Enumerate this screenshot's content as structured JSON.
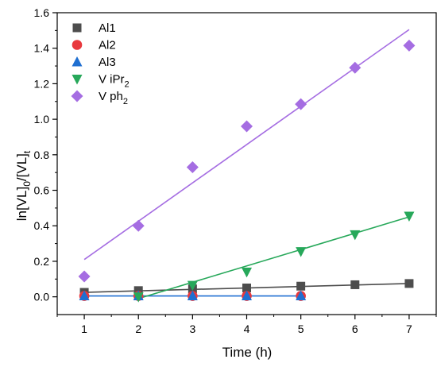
{
  "chart_data": {
    "type": "scatter",
    "title": "",
    "xlabel": "Time (h)",
    "ylabel_parts": {
      "main1": "ln[VL]",
      "sub1": "0",
      "main2": "/[VL]",
      "sub2": "t"
    },
    "xlim": [
      0.5,
      7.5
    ],
    "ylim": [
      -0.1,
      1.6
    ],
    "x_ticks": [
      1,
      2,
      3,
      4,
      5,
      6,
      7
    ],
    "y_ticks": [
      0.0,
      0.2,
      0.4,
      0.6,
      0.8,
      1.0,
      1.2,
      1.4,
      1.6
    ],
    "y_tick_labels": [
      "0.0",
      "0.2",
      "0.4",
      "0.6",
      "0.8",
      "1.0",
      "1.2",
      "1.4",
      "1.6"
    ],
    "legend_position": "top-left",
    "grid": false,
    "series": [
      {
        "name": "Al1",
        "name_sub": "",
        "marker": "square",
        "color": "#4d4d4d",
        "line_color": "#4d4d4d",
        "x": [
          1,
          2,
          3,
          4,
          5,
          6,
          7
        ],
        "y": [
          0.025,
          0.035,
          0.045,
          0.05,
          0.06,
          0.068,
          0.075
        ],
        "fit": [
          [
            1,
            0.025
          ],
          [
            7,
            0.075
          ]
        ]
      },
      {
        "name": "Al2",
        "name_sub": "",
        "marker": "circle",
        "color": "#e8383d",
        "line_color": "#e8383d",
        "x": [
          1,
          2,
          3,
          4,
          5
        ],
        "y": [
          0.005,
          0.005,
          0.005,
          0.005,
          0.005
        ],
        "fit": null
      },
      {
        "name": "Al3",
        "name_sub": "",
        "marker": "triangle-up",
        "color": "#1f6fd1",
        "line_color": "#1f6fd1",
        "x": [
          1,
          2,
          3,
          4,
          5
        ],
        "y": [
          0.005,
          0.005,
          0.005,
          0.005,
          0.005
        ],
        "fit": [
          [
            1,
            0.005
          ],
          [
            5,
            0.005
          ]
        ]
      },
      {
        "name": "V iPr",
        "name_sub": "2",
        "marker": "triangle-down",
        "color": "#27a85a",
        "line_color": "#27a85a",
        "x": [
          2,
          3,
          4,
          5,
          6,
          7
        ],
        "y": [
          0.0,
          0.065,
          0.14,
          0.255,
          0.35,
          0.455
        ],
        "fit": [
          [
            2,
            -0.01
          ],
          [
            7,
            0.45
          ]
        ]
      },
      {
        "name": "V ph",
        "name_sub": "2",
        "marker": "diamond",
        "color": "#a56de2",
        "line_color": "#a56de2",
        "x": [
          1,
          2,
          3,
          4,
          5,
          6,
          7
        ],
        "y": [
          0.115,
          0.4,
          0.73,
          0.96,
          1.085,
          1.29,
          1.415
        ],
        "fit": [
          [
            1,
            0.21
          ],
          [
            7,
            1.505
          ]
        ]
      }
    ]
  }
}
